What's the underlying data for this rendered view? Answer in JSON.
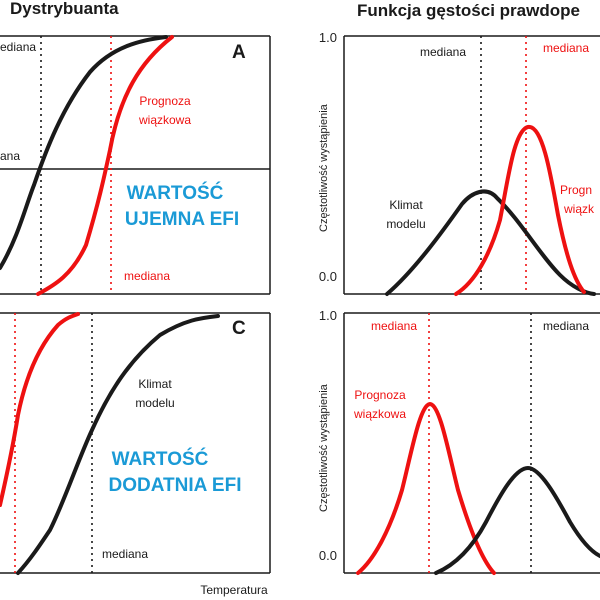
{
  "titles": {
    "left": "Dystrybuanta",
    "right": "Funkcja gęstości prawdope"
  },
  "colors": {
    "ensemble": "#ee1111",
    "climate": "#1a1a1a",
    "efi_text": "#1a9ad6"
  },
  "axis": {
    "xlabel": "Temperatura",
    "ylabel": "Częstotliwość wystąpienia",
    "y_top": "1.0",
    "y_bottom": "0.0"
  },
  "panel_a": {
    "letter": "A",
    "label_top_left": "ediana",
    "label_mid_left": "ana",
    "ensemble_label_1": "Prognoza",
    "ensemble_label_2": "wiązkowa",
    "efi_line1": "WARTOŚĆ",
    "efi_line2": "UJEMNA EFI",
    "median_label": "mediana"
  },
  "panel_b": {
    "median_black": "mediana",
    "median_red": "mediana",
    "climate_line1": "Klimat",
    "climate_line2": "modelu",
    "ensemble_line1": "Progn",
    "ensemble_line2": "wiązk"
  },
  "panel_c": {
    "letter": "C",
    "climate_line1": "Klimat",
    "climate_line2": "modelu",
    "efi_line1": "WARTOŚĆ",
    "efi_line2": "DODATNIA EFI",
    "median_label": "mediana"
  },
  "panel_d": {
    "median_red": "mediana",
    "median_black": "mediana",
    "ensemble_line1": "Prognoza",
    "ensemble_line2": "wiązkowa"
  }
}
